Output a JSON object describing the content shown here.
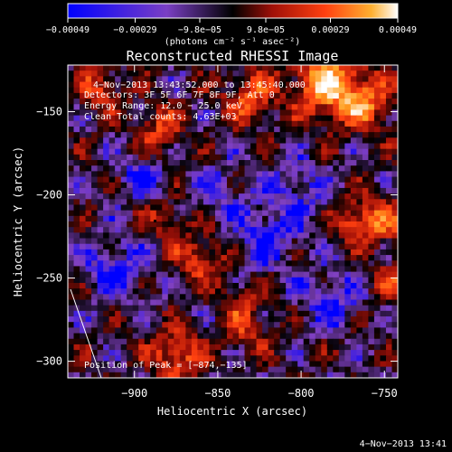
{
  "chart_data": {
    "type": "heatmap",
    "title": "Reconstructed RHESSI Image",
    "xlabel": "Heliocentric X (arcsec)",
    "ylabel": "Heliocentric Y (arcsec)",
    "xlim": [
      -940,
      -742
    ],
    "ylim": [
      -310,
      -122
    ],
    "xticks": [
      -900,
      -850,
      -800,
      -750
    ],
    "yticks": [
      -150,
      -200,
      -250,
      -300
    ],
    "xtick_labels": [
      "−900",
      "−850",
      "−800",
      "−750"
    ],
    "ytick_labels": [
      "−150",
      "−200",
      "−250",
      "−300"
    ],
    "colorbar": {
      "units": "(photons cm⁻² s⁻¹ asec⁻²)",
      "tick_values": [
        -0.00049,
        -0.00029,
        -9.8e-05,
        9.8e-05,
        0.00029,
        0.00049
      ],
      "tick_labels": [
        "−0.00049",
        "−0.00029",
        "−9.8e−05",
        "9.8e−05",
        "0.00029",
        "0.00049"
      ],
      "colormap": [
        "#0000ff",
        "#8040c0",
        "#000000",
        "#a01008",
        "#ff4010",
        "#ffa020",
        "#ffffff"
      ]
    },
    "annotations": {
      "time_range": "4−Nov−2013 13:43:52.000 to 13:45:40.000",
      "detectors": "Detectors: 3F 5F 6F 7F 8F 9F, Att 0",
      "energy": "Energy Range: 12.0 − 25.0 keV",
      "clean": "Clean    Total counts: 4.63E+03",
      "peak": "Position of Peak = [−874,−135]"
    },
    "peak_position": [
      -874,
      -135
    ],
    "grid": false
  },
  "footer": {
    "timestamp": "4−Nov−2013 13:41"
  }
}
